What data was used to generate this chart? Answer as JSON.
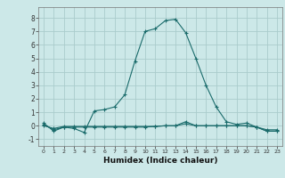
{
  "xlabel": "Humidex (Indice chaleur)",
  "background_color": "#cce8e8",
  "grid_color": "#aacccc",
  "line_color": "#1a6b6b",
  "xlim": [
    -0.5,
    23.5
  ],
  "ylim": [
    -1.5,
    8.8
  ],
  "yticks": [
    -1,
    0,
    1,
    2,
    3,
    4,
    5,
    6,
    7,
    8
  ],
  "xticks": [
    0,
    1,
    2,
    3,
    4,
    5,
    6,
    7,
    8,
    9,
    10,
    11,
    12,
    13,
    14,
    15,
    16,
    17,
    18,
    19,
    20,
    21,
    22,
    23
  ],
  "series1": [
    [
      0,
      0.2
    ],
    [
      1,
      -0.4
    ],
    [
      2,
      -0.1
    ],
    [
      3,
      -0.2
    ],
    [
      4,
      -0.5
    ],
    [
      5,
      1.1
    ],
    [
      6,
      1.2
    ],
    [
      7,
      1.4
    ],
    [
      8,
      2.3
    ],
    [
      9,
      4.8
    ],
    [
      10,
      7.0
    ],
    [
      11,
      7.2
    ],
    [
      12,
      7.8
    ],
    [
      13,
      7.9
    ],
    [
      14,
      6.9
    ],
    [
      15,
      5.0
    ],
    [
      16,
      3.0
    ],
    [
      17,
      1.4
    ],
    [
      18,
      0.3
    ],
    [
      19,
      0.1
    ],
    [
      20,
      0.2
    ],
    [
      21,
      -0.1
    ],
    [
      22,
      -0.4
    ],
    [
      23,
      -0.4
    ]
  ],
  "series2": [
    [
      0,
      0.1
    ],
    [
      1,
      -0.3
    ],
    [
      2,
      -0.1
    ],
    [
      3,
      -0.1
    ],
    [
      4,
      -0.1
    ],
    [
      5,
      -0.1
    ],
    [
      6,
      -0.1
    ],
    [
      7,
      -0.1
    ],
    [
      8,
      -0.1
    ],
    [
      9,
      -0.1
    ],
    [
      10,
      -0.1
    ],
    [
      11,
      -0.05
    ],
    [
      12,
      0.0
    ],
    [
      13,
      0.0
    ],
    [
      14,
      0.3
    ],
    [
      15,
      0.0
    ],
    [
      16,
      0.0
    ],
    [
      17,
      0.0
    ],
    [
      18,
      0.0
    ],
    [
      19,
      0.0
    ],
    [
      20,
      0.0
    ],
    [
      21,
      -0.1
    ],
    [
      22,
      -0.4
    ],
    [
      23,
      -0.4
    ]
  ],
  "series3": [
    [
      0,
      0.0
    ],
    [
      1,
      -0.2
    ],
    [
      2,
      -0.05
    ],
    [
      3,
      -0.05
    ],
    [
      4,
      -0.05
    ],
    [
      5,
      -0.05
    ],
    [
      6,
      -0.05
    ],
    [
      7,
      -0.05
    ],
    [
      8,
      -0.05
    ],
    [
      9,
      -0.05
    ],
    [
      10,
      -0.05
    ],
    [
      11,
      -0.05
    ],
    [
      12,
      0.0
    ],
    [
      13,
      0.0
    ],
    [
      14,
      0.15
    ],
    [
      15,
      0.0
    ],
    [
      16,
      0.0
    ],
    [
      17,
      0.0
    ],
    [
      18,
      0.0
    ],
    [
      19,
      0.0
    ],
    [
      20,
      0.0
    ],
    [
      21,
      -0.1
    ],
    [
      22,
      -0.3
    ],
    [
      23,
      -0.3
    ]
  ]
}
